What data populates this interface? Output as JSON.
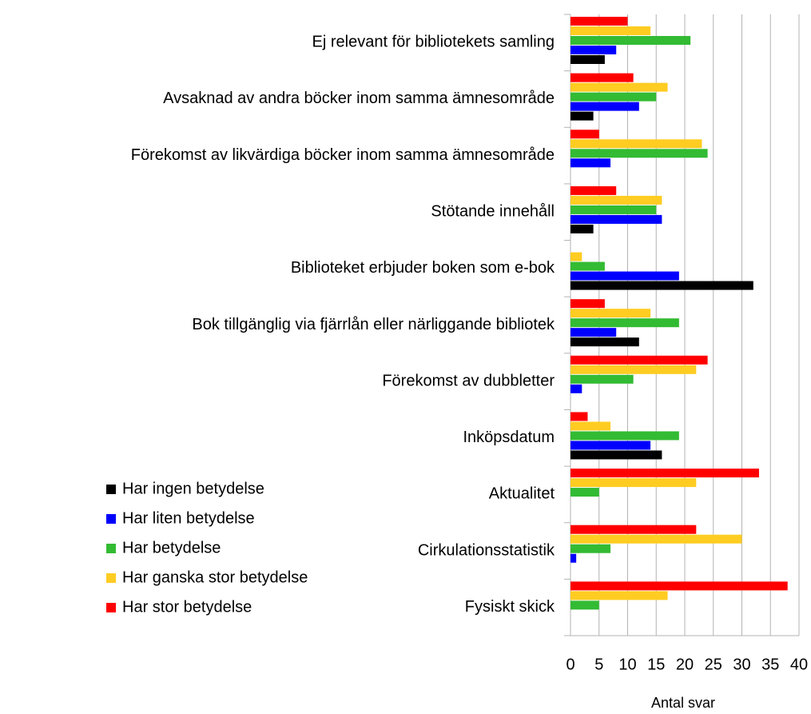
{
  "chart_data": {
    "type": "hbar",
    "categories": [
      "Ej relevant för bibliotekets samling",
      "Avsaknad av andra böcker inom samma ämnesområde",
      "Förekomst av likvärdiga böcker inom samma ämnesområde",
      "Stötande innehåll",
      "Biblioteket erbjuder boken som e-bok",
      "Bok tillgänglig via fjärrlån eller närliggande bibliotek",
      "Förekomst av dubbletter",
      "Inköpsdatum",
      "Aktualitet",
      "Cirkulationsstatistik",
      "Fysiskt skick"
    ],
    "series": [
      {
        "name": "Har ingen betydelse",
        "color": "#000000",
        "values": [
          6,
          4,
          0,
          4,
          32,
          12,
          0,
          16,
          0,
          0,
          0
        ]
      },
      {
        "name": "Har liten betydelse",
        "color": "#0000ff",
        "values": [
          8,
          12,
          7,
          16,
          19,
          8,
          2,
          14,
          0,
          1,
          0
        ]
      },
      {
        "name": "Har betydelse",
        "color": "#33bb33",
        "values": [
          21,
          15,
          24,
          15,
          6,
          19,
          11,
          19,
          5,
          7,
          5
        ]
      },
      {
        "name": "Har ganska stor betydelse",
        "color": "#ffcc22",
        "values": [
          14,
          17,
          23,
          16,
          2,
          14,
          22,
          7,
          22,
          30,
          17
        ]
      },
      {
        "name": "Har stor betydelse",
        "color": "#ff0000",
        "values": [
          10,
          11,
          5,
          8,
          0,
          6,
          24,
          3,
          33,
          22,
          38
        ]
      }
    ],
    "xlabel": "Antal svar",
    "xlim": [
      0,
      40
    ],
    "xticks": [
      0,
      5,
      10,
      15,
      20,
      25,
      30,
      35,
      40
    ],
    "grid": true
  }
}
